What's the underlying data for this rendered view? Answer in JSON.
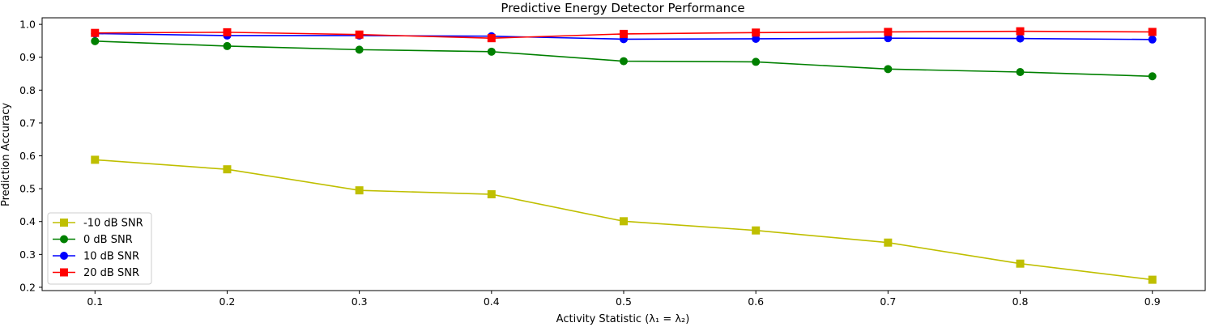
{
  "chart_data": {
    "type": "line",
    "title": "Predictive Energy Detector Performance",
    "xlabel": "Activity Statistic (λ₁ = λ₂)",
    "ylabel": "Prediction Accuracy",
    "x": [
      0.1,
      0.2,
      0.3,
      0.4,
      0.5,
      0.6,
      0.7,
      0.8,
      0.9
    ],
    "xticks": [
      "0.1",
      "0.2",
      "0.3",
      "0.4",
      "0.5",
      "0.6",
      "0.7",
      "0.8",
      "0.9"
    ],
    "yticks": [
      "0.2",
      "0.3",
      "0.4",
      "0.5",
      "0.6",
      "0.7",
      "0.8",
      "0.9",
      "1.0"
    ],
    "xlim": [
      0.06,
      0.94
    ],
    "ylim": [
      0.19,
      1.02
    ],
    "grid": false,
    "legend_position": "lower-left",
    "series": [
      {
        "name": "-10 dB SNR",
        "color": "#bfbf00",
        "marker": "square",
        "values": [
          0.588,
          0.559,
          0.495,
          0.483,
          0.401,
          0.373,
          0.336,
          0.272,
          0.223
        ]
      },
      {
        "name": "0 dB SNR",
        "color": "#008000",
        "marker": "circle",
        "values": [
          0.949,
          0.934,
          0.923,
          0.917,
          0.888,
          0.886,
          0.864,
          0.855,
          0.842
        ]
      },
      {
        "name": "10 dB SNR",
        "color": "#0000ff",
        "marker": "circle",
        "values": [
          0.972,
          0.966,
          0.966,
          0.964,
          0.955,
          0.956,
          0.958,
          0.957,
          0.954
        ]
      },
      {
        "name": "20 dB SNR",
        "color": "#ff0000",
        "marker": "square",
        "values": [
          0.974,
          0.976,
          0.969,
          0.958,
          0.971,
          0.975,
          0.977,
          0.979,
          0.977
        ]
      }
    ]
  }
}
